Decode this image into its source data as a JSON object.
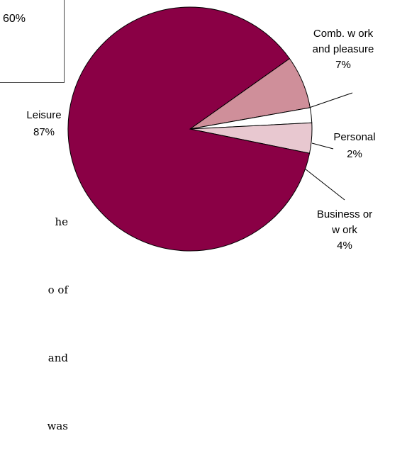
{
  "legend_fragment": {
    "value": "60%"
  },
  "body_text_fragments": [
    "he",
    "o of",
    "and",
    "was"
  ],
  "chart_data": {
    "type": "pie",
    "title": "",
    "slices": [
      {
        "name": "Leisure",
        "value": 87,
        "label_lines": [
          "Leisure",
          "87%"
        ],
        "color": "#8a0045"
      },
      {
        "name": "Comb. w ork and pleasure",
        "value": 7,
        "label_lines": [
          "Comb. w ork",
          "and pleasure",
          "7%"
        ],
        "color": "#cf8f9a"
      },
      {
        "name": "Personal",
        "value": 2,
        "label_lines": [
          "Personal",
          "2%"
        ],
        "color": "#ffffff"
      },
      {
        "name": "Business or w ork",
        "value": 4,
        "label_lines": [
          "Business or",
          "w ork",
          "4%"
        ],
        "color": "#e8c8d0"
      }
    ]
  }
}
